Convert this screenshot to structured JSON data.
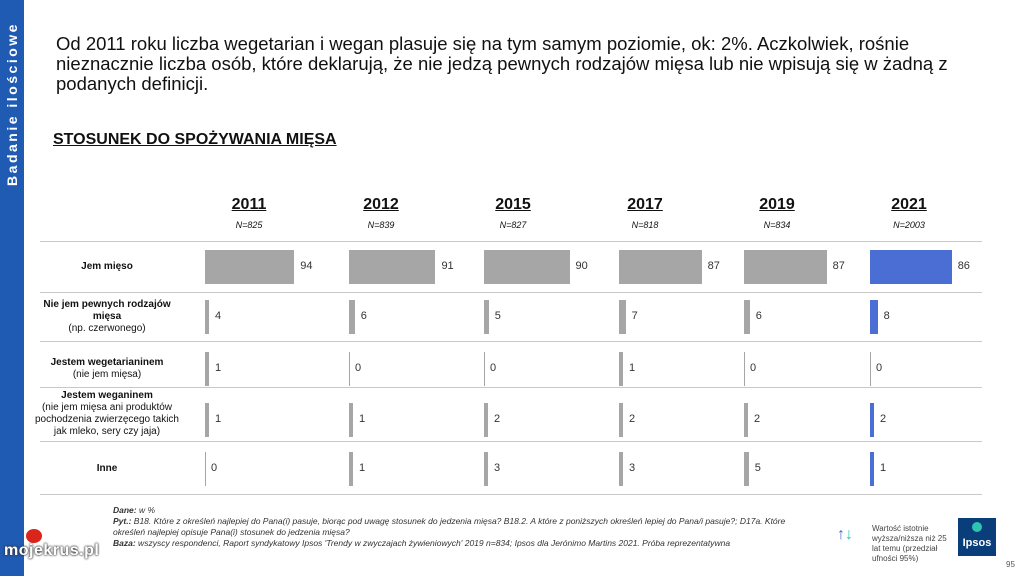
{
  "sidebar": {
    "label": "Badanie ilościowe"
  },
  "headline": "Od 2011 roku liczba wegetarian i wegan plasuje się na tym samym poziomie, ok: 2%. Aczkolwiek, rośnie nieznacznie liczba osób, które deklarują, że nie jedzą pewnych rodzajów mięsa lub nie wpisują się w żadną z podanych definicji.",
  "section_title": "STOSUNEK DO SPOŻYWANIA MIĘSA",
  "chart_data": {
    "type": "bar",
    "title": "STOSUNEK DO SPOŻYWANIA MIĘSA",
    "columns": [
      {
        "year": "2011",
        "n": "N=825"
      },
      {
        "year": "2012",
        "n": "N=839"
      },
      {
        "year": "2015",
        "n": "N=827"
      },
      {
        "year": "2017",
        "n": "N=818"
      },
      {
        "year": "2019",
        "n": "N=834"
      },
      {
        "year": "2021",
        "n": "N=2003"
      }
    ],
    "categories": [
      {
        "main": "Jem mięso",
        "sub": ""
      },
      {
        "main": "Nie jem pewnych rodzajów mięsa",
        "sub": "(np. czerwonego)"
      },
      {
        "main": "Jestem wegetarianinem",
        "sub": "(nie jem mięsa)"
      },
      {
        "main": "Jestem weganinem",
        "sub": "(nie jem mięsa ani produktów pochodzenia zwierzęcego takich jak mleko, sery czy jaja)"
      },
      {
        "main": "Inne",
        "sub": ""
      }
    ],
    "series": [
      {
        "name": "2011",
        "values": [
          94,
          4,
          1,
          1,
          0
        ]
      },
      {
        "name": "2012",
        "values": [
          91,
          6,
          0,
          1,
          1
        ]
      },
      {
        "name": "2015",
        "values": [
          90,
          5,
          0,
          2,
          3
        ]
      },
      {
        "name": "2017",
        "values": [
          87,
          7,
          1,
          2,
          3
        ]
      },
      {
        "name": "2019",
        "values": [
          87,
          6,
          0,
          2,
          5
        ]
      },
      {
        "name": "2021",
        "values": [
          86,
          8,
          0,
          2,
          1
        ]
      }
    ],
    "unit": "%",
    "colors": {
      "past": "#a6a6a6",
      "current": "#4a6ed3"
    }
  },
  "footer": {
    "dane_label": "Dane:",
    "dane": " w %",
    "pyt_label": "Pyt.:",
    "pyt": " B18. Które z określeń najlepiej do Pana(i) pasuje, biorąc pod uwagę stosunek do jedzenia mięsa? B18.2. A które z poniższych określeń lepiej do Pana/i pasuje?; D17a. Które określeń najlepiej opisuje Pana(i) stosunek do jedzenia mięsa?",
    "baza_label": "Baza:",
    "baza": " wszyscy respondenci, Raport syndykatowy Ipsos 'Trendy w zwyczajach żywieniowych' 2019 n=834; Ipsos dla Jerónimo Martins 2021. Próba reprezentatywna"
  },
  "legend": {
    "icon": "↑↓",
    "text": "Wartość istotnie wyższa/niższa niż 25 lat temu (przedział ufności 95%)"
  },
  "logo": "Ipsos",
  "page_number": "95",
  "watermark": "mojekrus.pl"
}
